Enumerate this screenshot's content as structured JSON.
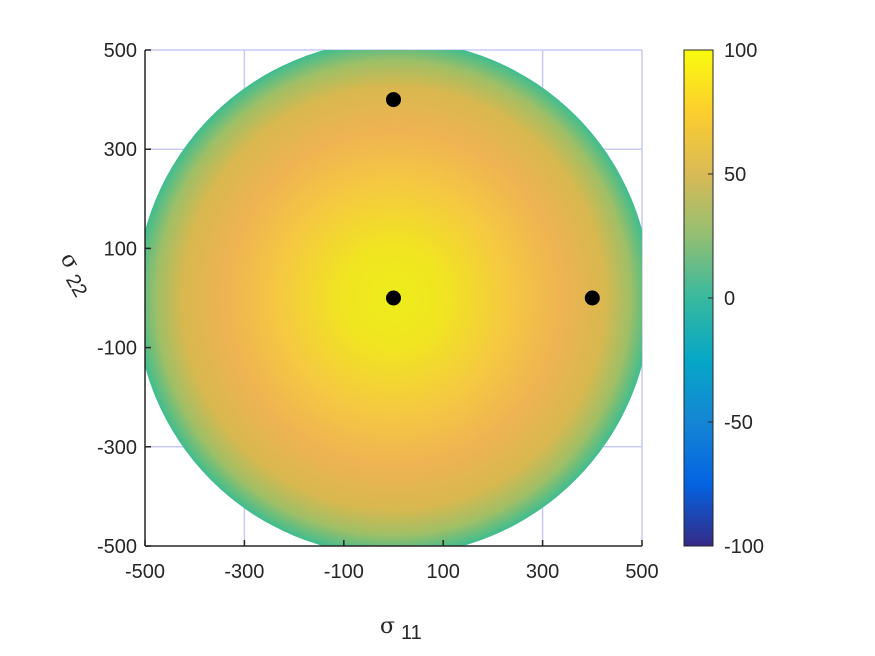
{
  "chart_data": {
    "type": "heatmap",
    "title": "",
    "xlabel": {
      "symbol": "σ",
      "subscript": "11"
    },
    "ylabel": {
      "symbol": "σ",
      "subscript": "22"
    },
    "xlim": [
      -500,
      500
    ],
    "ylim": [
      -500,
      500
    ],
    "xticks": [
      -500,
      -300,
      -100,
      100,
      300,
      500
    ],
    "yticks": [
      -500,
      -300,
      -100,
      100,
      300,
      500
    ],
    "xtick_labels": [
      "-500",
      "-300",
      "-100",
      "100",
      "300",
      "500"
    ],
    "ytick_labels": [
      "-500",
      "-300",
      "-100",
      "100",
      "300",
      "500"
    ],
    "grid": true,
    "grid_spacing": 200,
    "surface": {
      "shape": "ellipse",
      "center": [
        0,
        0
      ],
      "description": "Filled ellipse; value is highest (~100) at the center and falls to ~20 at the boundary",
      "center_value": 100,
      "edge_value": 20,
      "boundary_points": [
        [
          0,
          400
        ],
        [
          400,
          0
        ],
        [
          0,
          -400
        ],
        [
          -400,
          0
        ],
        [
          240,
          460
        ],
        [
          -240,
          -460
        ],
        [
          460,
          230
        ],
        [
          -460,
          -230
        ]
      ]
    },
    "points": [
      {
        "x": 0,
        "y": 0,
        "label": ""
      },
      {
        "x": 0,
        "y": 400,
        "label": ""
      },
      {
        "x": 400,
        "y": 0,
        "label": ""
      }
    ],
    "colorbar": {
      "min": -100,
      "max": 100,
      "ticks": [
        -100,
        -50,
        0,
        50,
        100
      ],
      "tick_labels": [
        "-100",
        "-50",
        "0",
        "50",
        "100"
      ],
      "colormap": "parula",
      "colors": [
        "#352a87",
        "#0363e1",
        "#1485d4",
        "#06a7c6",
        "#38b99e",
        "#92bf73",
        "#d9ba56",
        "#fcce2e",
        "#f9fb0e"
      ]
    }
  }
}
